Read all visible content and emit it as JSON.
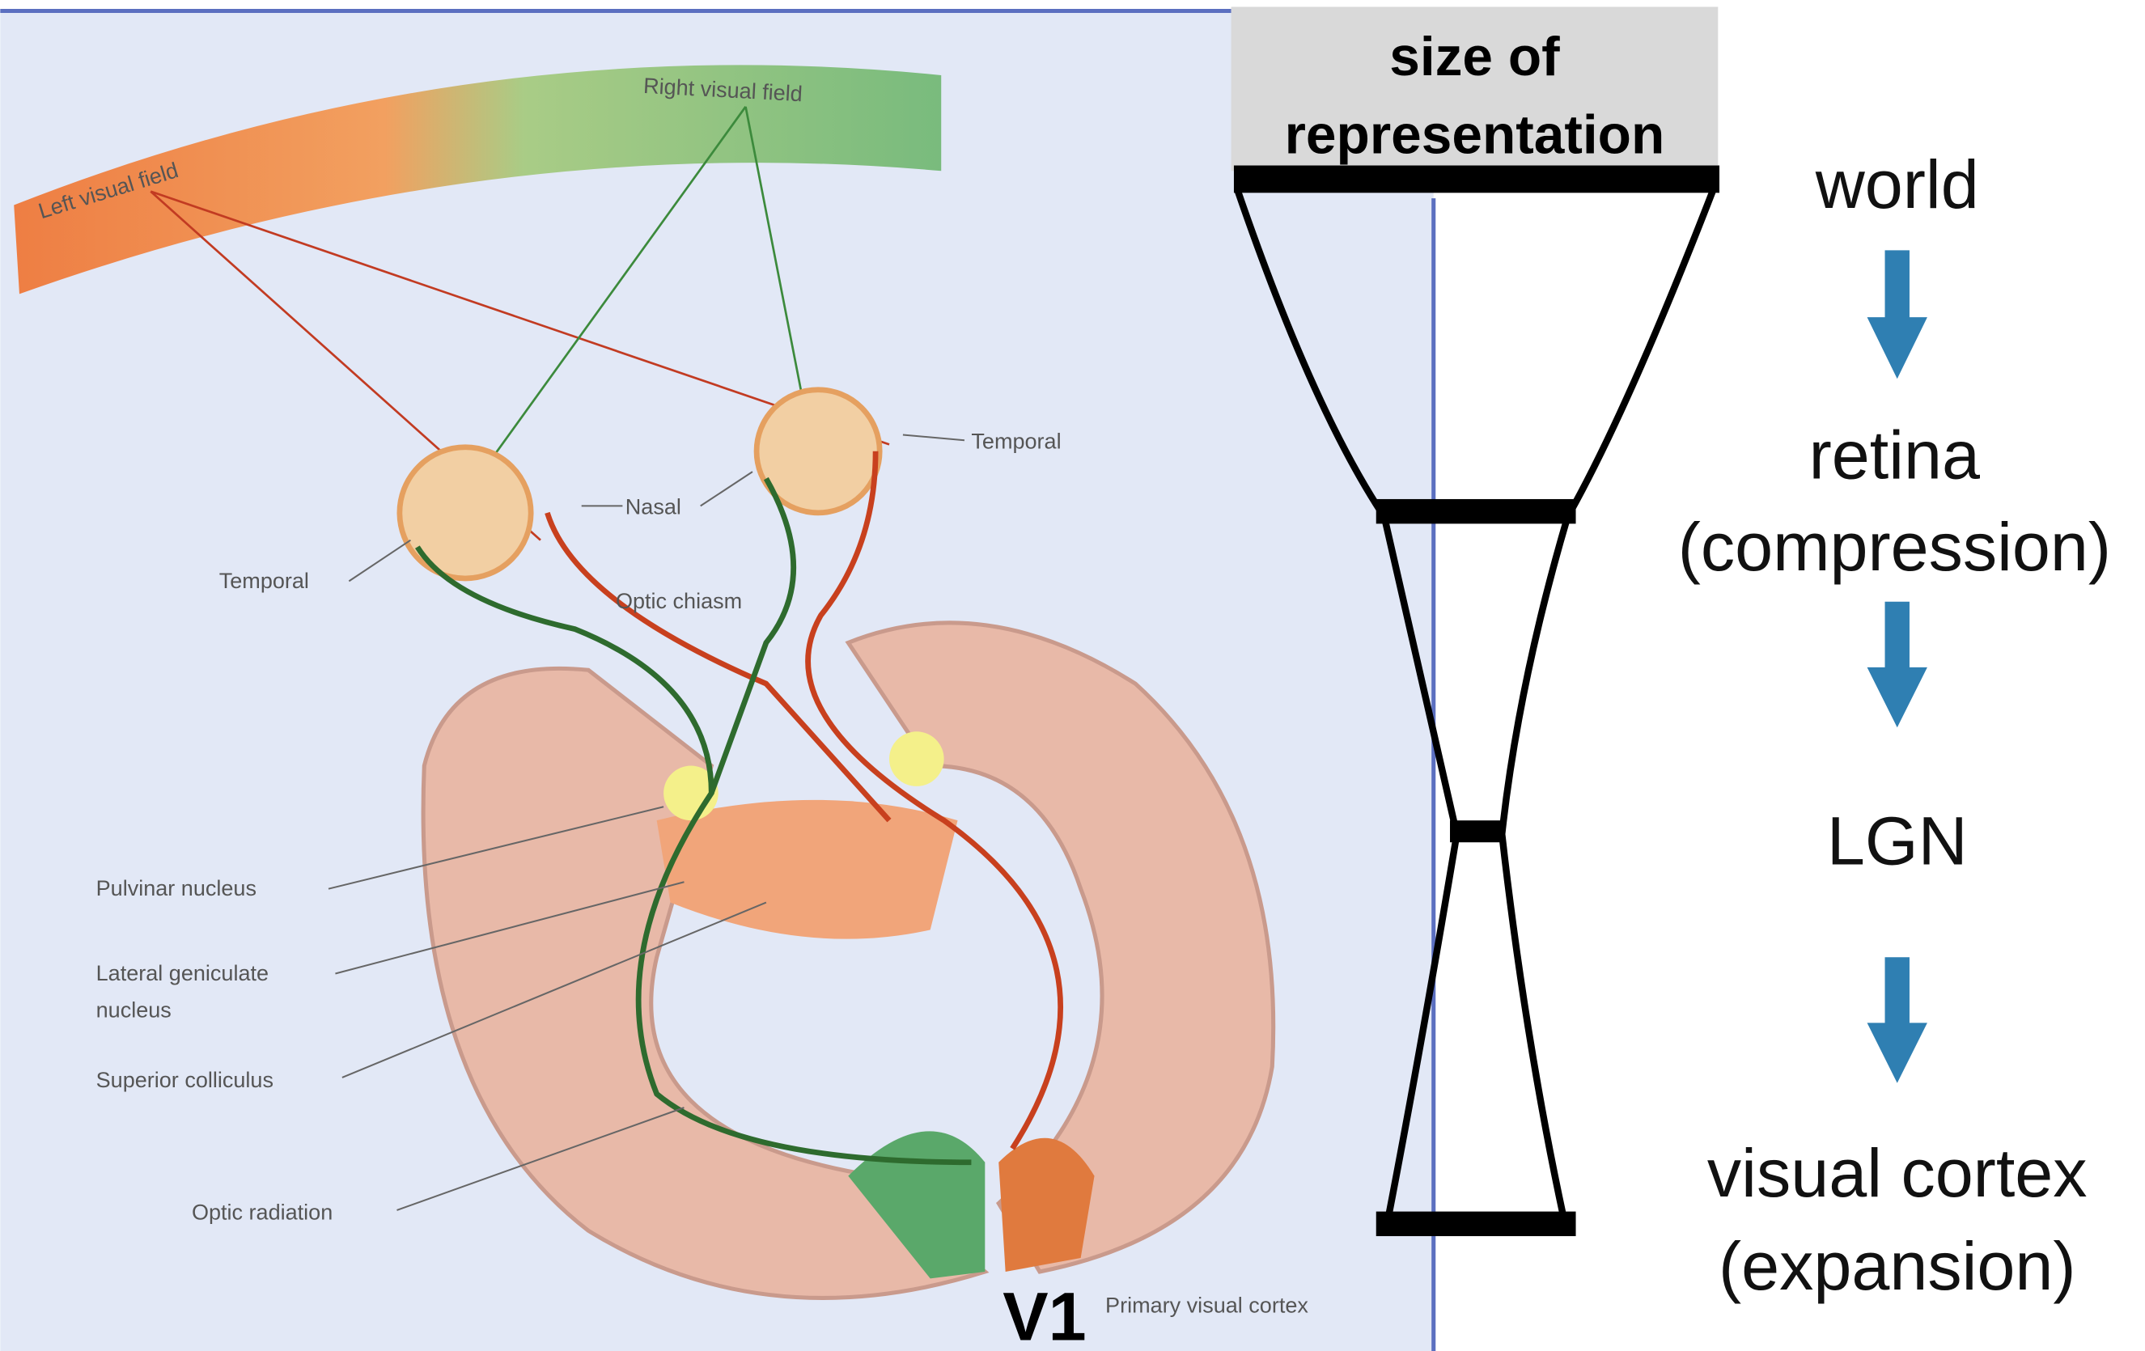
{
  "figure": {
    "labels": {
      "left_field": "Left visual field",
      "right_field": "Right visual field",
      "temporal_left": "Temporal",
      "temporal_right": "Temporal",
      "nasal": "Nasal",
      "chiasm": "Optic chiasm",
      "pulvinar": "Pulvinar nucleus",
      "lgn": [
        "Lateral geniculate",
        "nucleus"
      ],
      "colliculus": "Superior colliculus",
      "radiation": "Optic radiation",
      "cortex": "Primary visual cortex"
    },
    "v1": "V1"
  },
  "header": [
    "size of",
    "representation"
  ],
  "stages": [
    {
      "lines": [
        "world"
      ]
    },
    {
      "lines": [
        "retina",
        "(compression)"
      ]
    },
    {
      "lines": [
        "LGN"
      ]
    },
    {
      "lines": [
        "visual cortex",
        "(expansion)"
      ]
    }
  ]
}
